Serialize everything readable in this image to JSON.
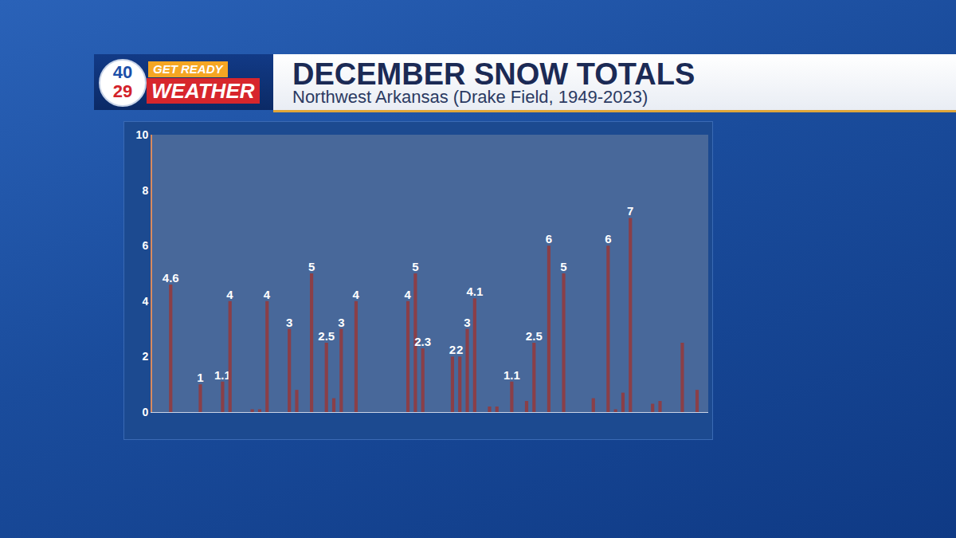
{
  "header": {
    "logo_top": "40",
    "logo_bottom": "29",
    "tag": "GET READY",
    "brand": "WEATHER"
  },
  "chart_data": {
    "type": "bar",
    "title": "DECEMBER SNOW TOTALS",
    "subtitle": "Northwest Arkansas (Drake Field, 1949-2023)",
    "categories": [
      null,
      null,
      null,
      null,
      null,
      null,
      null,
      null,
      null,
      null,
      null,
      null,
      null,
      null,
      null,
      null,
      null,
      null,
      null,
      null,
      null,
      null,
      null,
      null,
      null,
      null,
      null,
      null,
      null,
      null,
      null,
      null,
      null,
      null,
      null,
      null,
      null,
      null,
      null,
      null,
      null,
      null,
      null,
      null,
      null,
      null,
      null,
      null,
      null,
      null,
      null,
      null,
      null,
      null,
      null,
      null,
      null,
      null,
      null,
      null,
      null,
      null,
      null,
      null,
      null,
      null,
      null,
      null,
      null,
      null,
      null,
      null,
      null,
      null,
      null
    ],
    "values": [
      0,
      0,
      4.6,
      0,
      0,
      0,
      1,
      0,
      0,
      1.1,
      4,
      0,
      0,
      0.1,
      0.1,
      4,
      0,
      0,
      3,
      0.8,
      0,
      5,
      0,
      2.5,
      0.5,
      3,
      0,
      4,
      0,
      0,
      0,
      0,
      0,
      0,
      4,
      5,
      2.3,
      0,
      0,
      0,
      2,
      2,
      3,
      4.1,
      0,
      0.2,
      0.2,
      0,
      1.1,
      0,
      0.4,
      2.5,
      0,
      6,
      0,
      5,
      0,
      0,
      0,
      0.5,
      0,
      6,
      0.1,
      0.7,
      7,
      0,
      0,
      0.3,
      0.4,
      0,
      0,
      2.5,
      0,
      0.8,
      0
    ],
    "value_labels": [
      null,
      null,
      "4.6",
      null,
      null,
      null,
      "1",
      null,
      null,
      "1.1",
      "4",
      null,
      null,
      null,
      null,
      "4",
      null,
      null,
      "3",
      null,
      null,
      "5",
      null,
      "2.5",
      null,
      "3",
      null,
      "4",
      null,
      null,
      null,
      null,
      null,
      null,
      "4",
      "5",
      "2.3",
      null,
      null,
      null,
      "2",
      "2",
      "3",
      "4.1",
      null,
      null,
      null,
      null,
      "1.1",
      null,
      null,
      "2.5",
      null,
      "6",
      null,
      "5",
      null,
      null,
      null,
      null,
      null,
      "6",
      null,
      null,
      "7",
      null,
      null,
      null,
      null,
      null,
      null,
      null,
      null,
      null,
      null
    ],
    "color": "#8a3f48",
    "ylim": [
      0,
      10
    ],
    "yticks": [
      0,
      2,
      4,
      6,
      8,
      10
    ],
    "grid": false,
    "data_labels": true,
    "tick_labels": "y"
  }
}
